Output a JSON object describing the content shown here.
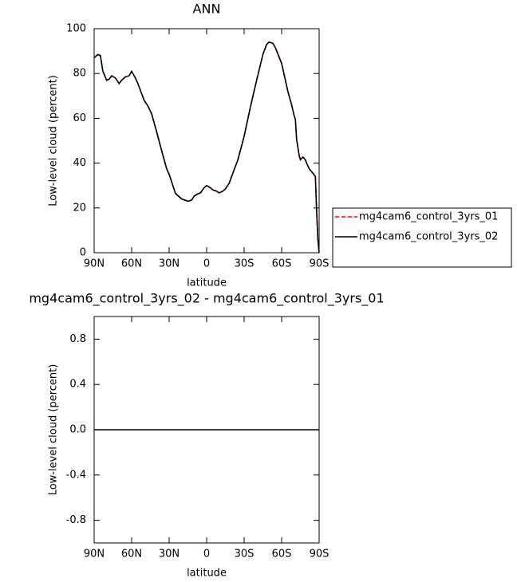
{
  "chart_data": [
    {
      "type": "line",
      "title": "ANN",
      "xlabel": "latitude",
      "ylabel": "Low-level cloud (percent)",
      "x": [
        90,
        87,
        85,
        83,
        80,
        78,
        76,
        73,
        70,
        68,
        65,
        62,
        60,
        57,
        55,
        52,
        50,
        47,
        44,
        40,
        35,
        32,
        30,
        27,
        25,
        22,
        20,
        15,
        12,
        10,
        7,
        5,
        2,
        0,
        -3,
        -5,
        -8,
        -10,
        -13,
        -15,
        -18,
        -20,
        -25,
        -30,
        -35,
        -40,
        -45,
        -48,
        -50,
        -53,
        -55,
        -60,
        -63,
        -65,
        -68,
        -70,
        -71,
        -72,
        -74,
        -75,
        -77,
        -79,
        -80,
        -82,
        -85,
        -87,
        -88,
        -89,
        -90
      ],
      "xlim": [
        90,
        -90
      ],
      "xticks": [
        {
          "value": 90,
          "label": "90N"
        },
        {
          "value": 60,
          "label": "60N"
        },
        {
          "value": 30,
          "label": "30N"
        },
        0,
        {
          "value": -30,
          "label": "30S"
        },
        {
          "value": -60,
          "label": "60S"
        },
        {
          "value": -90,
          "label": "90S"
        }
      ],
      "ylim": [
        0,
        100
      ],
      "yticks": [
        0,
        20,
        40,
        60,
        80,
        100
      ],
      "legend": "right",
      "series": [
        {
          "name": "mg4cam6_control_3yrs_01",
          "color": "#ff0000",
          "dashed": true,
          "values": [
            87,
            88.5,
            88,
            81,
            77,
            77.5,
            79,
            78,
            75.5,
            77,
            78.5,
            79,
            81,
            78,
            75.5,
            71,
            68,
            65.5,
            62,
            54,
            43.5,
            37.5,
            35,
            30,
            26.5,
            25,
            24,
            23,
            23.5,
            25.3,
            26.3,
            26.7,
            29,
            30,
            29,
            28,
            27.5,
            26.7,
            27.5,
            28.5,
            31,
            34,
            41.5,
            52,
            65,
            77,
            88.5,
            93,
            94,
            93.5,
            91.5,
            84.5,
            77,
            72,
            66,
            61.2,
            59.5,
            50.5,
            43.5,
            41.5,
            42.7,
            41.5,
            40,
            37.5,
            35.5,
            34,
            18.5,
            6,
            0
          ]
        },
        {
          "name": "mg4cam6_control_3yrs_02",
          "color": "#000000",
          "dashed": false,
          "values": [
            87,
            88.5,
            88,
            81,
            77,
            77.5,
            79,
            78,
            75.5,
            77,
            78.5,
            79,
            81,
            78,
            75.5,
            71,
            68,
            65.5,
            62,
            54,
            43.5,
            37.5,
            35,
            30,
            26.5,
            25,
            24,
            23,
            23.5,
            25.3,
            26.3,
            26.7,
            29,
            30,
            29,
            28,
            27.5,
            26.7,
            27.5,
            28.5,
            31,
            34,
            41.5,
            52,
            65,
            77,
            88.5,
            93,
            94,
            93.5,
            91.5,
            84.5,
            77,
            72,
            66,
            61.2,
            59.5,
            50.5,
            43.5,
            41.5,
            42.7,
            41.5,
            40,
            37.5,
            35.5,
            34,
            18.5,
            6,
            0
          ]
        }
      ]
    },
    {
      "type": "line",
      "title": "mg4cam6_control_3yrs_02 - mg4cam6_control_3yrs_01",
      "xlabel": "latitude",
      "ylabel": "Low-level cloud (percent)",
      "x": [
        90,
        -90
      ],
      "xlim": [
        90,
        -90
      ],
      "xticks": [
        {
          "value": 90,
          "label": "90N"
        },
        {
          "value": 60,
          "label": "60N"
        },
        {
          "value": 30,
          "label": "30N"
        },
        0,
        {
          "value": -30,
          "label": "30S"
        },
        {
          "value": -60,
          "label": "60S"
        },
        {
          "value": -90,
          "label": "90S"
        }
      ],
      "ylim": [
        -1,
        1
      ],
      "yticks": [
        -0.8,
        -0.4,
        {
          "value": 0,
          "label": "0.0"
        },
        0.4,
        0.8
      ],
      "series": [
        {
          "color": "#000000",
          "dashed": false,
          "values": [
            0,
            0
          ]
        }
      ]
    }
  ]
}
